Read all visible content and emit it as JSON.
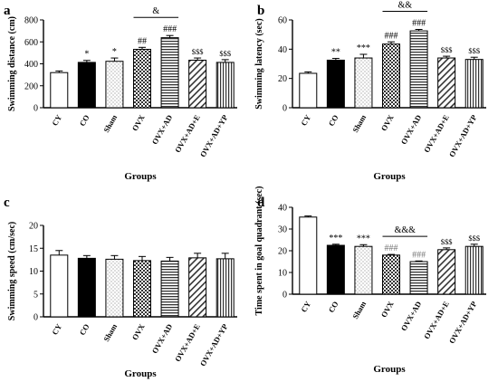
{
  "colors": {
    "CY": "#ffffff",
    "CO": "#000000",
    "Sham": "#dddddd",
    "OVX": "#444444",
    "OVX+AD": "#777777",
    "OVX+AD+E": "#555555",
    "OVX+AD+YP": "#555555",
    "sig_gray": "#777777"
  },
  "patterns": {
    "CY": "none",
    "CO": "solid",
    "Sham": "dots",
    "OVX": "checker",
    "OVX+AD": "hlines",
    "OVX+AD+E": "diag",
    "OVX+AD+YP": "vlines"
  },
  "chart_data": [
    {
      "type": "bar",
      "panel_label": "a",
      "categories": [
        "CY",
        "CO",
        "Sham",
        "OVX",
        "OVX+AD",
        "OVX+AD+E",
        "OVX+AD+YP"
      ],
      "values": [
        320,
        413,
        423,
        532,
        638,
        433,
        413
      ],
      "errors": [
        15,
        18,
        30,
        18,
        20,
        20,
        25
      ],
      "ylabel": "Swimming distance (cm)",
      "xlabel": "Groups",
      "ylim": [
        0,
        800
      ],
      "yticks": [
        0,
        200,
        400,
        600,
        800
      ],
      "marks": [
        "",
        "*",
        "*",
        "##",
        "###",
        "$$$",
        "$$$"
      ],
      "bracket": {
        "from": 3,
        "to": 4,
        "label": "&"
      }
    },
    {
      "type": "bar",
      "panel_label": "b",
      "categories": [
        "CY",
        "CO",
        "Sham",
        "OVX",
        "OVX+AD",
        "OVX+AD+E",
        "OVX+AD+YP"
      ],
      "values": [
        23.5,
        32.5,
        34,
        43.5,
        52.5,
        34,
        33
      ],
      "errors": [
        1,
        1.2,
        2.5,
        1.5,
        1,
        1.2,
        1.5
      ],
      "ylabel": "Swimming latency (sec)",
      "xlabel": "Groups",
      "ylim": [
        0,
        60
      ],
      "yticks": [
        0,
        20,
        40,
        60
      ],
      "marks": [
        "",
        "**",
        "***",
        "###",
        "###",
        "$$$",
        "$$$"
      ],
      "bracket": {
        "from": 3,
        "to": 4,
        "label": "&&"
      }
    },
    {
      "type": "bar",
      "panel_label": "c",
      "categories": [
        "CY",
        "CO",
        "Sham",
        "OVX",
        "OVX+AD",
        "OVX+AD+E",
        "OVX+AD+YP"
      ],
      "values": [
        13.5,
        12.8,
        12.6,
        12.3,
        12.2,
        12.9,
        12.7
      ],
      "errors": [
        1,
        0.6,
        0.8,
        0.9,
        0.8,
        1,
        1.2
      ],
      "ylabel": "Swimming speed (cm/sec)",
      "xlabel": "Groups",
      "ylim": [
        0,
        20
      ],
      "yticks": [
        0,
        5,
        10,
        15,
        20
      ],
      "marks": [
        "",
        "",
        "",
        "",
        "",
        "",
        ""
      ]
    },
    {
      "type": "bar",
      "panel_label": "d",
      "categories": [
        "CY",
        "CO",
        "Sham",
        "OVX",
        "OVX+AD",
        "OVX+AD+E",
        "OVX+AD+YP"
      ],
      "values": [
        35.5,
        22.5,
        22,
        18,
        15,
        20.5,
        22
      ],
      "errors": [
        0.5,
        0.5,
        0.8,
        0.3,
        0.3,
        0.8,
        1
      ],
      "ylabel": "Time spent in goal quadrant (sec)",
      "xlabel": "Groups",
      "ylim": [
        0,
        40
      ],
      "yticks": [
        0,
        10,
        20,
        30,
        40
      ],
      "marks": [
        "",
        "***",
        "***",
        "###",
        "###",
        "$$$",
        "$$$"
      ],
      "bracket": {
        "from": 3,
        "to": 4,
        "label": "&&&"
      }
    }
  ]
}
